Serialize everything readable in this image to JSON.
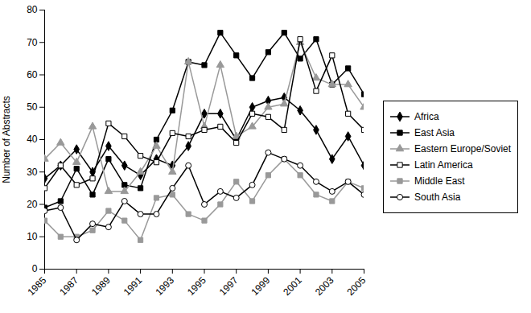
{
  "chart_data": {
    "type": "line",
    "y_label": "Number of Abstracts",
    "x": [
      1985,
      1986,
      1987,
      1988,
      1989,
      1990,
      1991,
      1992,
      1993,
      1994,
      1995,
      1996,
      1997,
      1998,
      1999,
      2000,
      2001,
      2002,
      2003,
      2004,
      2005
    ],
    "xlim": [
      1985,
      2005
    ],
    "xticks": [
      1985,
      1987,
      1989,
      1991,
      1993,
      1995,
      1997,
      1999,
      2001,
      2003,
      2005
    ],
    "ylim": [
      0,
      80
    ],
    "yticks": [
      0,
      10,
      20,
      30,
      40,
      50,
      60,
      70,
      80
    ],
    "grid": false,
    "legend": "right",
    "series": [
      {
        "name": "Africa",
        "color": "#000000",
        "marker": "diamond",
        "values": [
          28,
          32,
          37,
          30,
          38,
          32,
          29,
          34,
          32,
          38,
          48,
          48,
          40,
          50,
          52,
          53,
          49,
          43,
          34,
          41,
          32
        ]
      },
      {
        "name": "East Asia",
        "color": "#000000",
        "marker": "square",
        "values": [
          19,
          21,
          31,
          23,
          34,
          26,
          25,
          40,
          49,
          64,
          63,
          73,
          66,
          59,
          67,
          73,
          65,
          71,
          57,
          62,
          54
        ]
      },
      {
        "name": "Eastern Europe/Soviet",
        "color": "#999999",
        "marker": "triangle",
        "values": [
          34,
          39,
          33,
          44,
          24,
          24,
          30,
          38,
          30,
          64,
          44,
          63,
          41,
          44,
          50,
          51,
          70,
          59,
          57,
          57,
          50
        ]
      },
      {
        "name": "Latin America",
        "color": "#000000",
        "marker": "open-square",
        "values": [
          25,
          32,
          26,
          28,
          45,
          41,
          35,
          33,
          42,
          41,
          43,
          44,
          39,
          48,
          47,
          43,
          71,
          55,
          66,
          48,
          43
        ]
      },
      {
        "name": "Middle East",
        "color": "#999999",
        "marker": "square",
        "values": [
          15,
          10,
          10,
          12,
          18,
          15,
          9,
          22,
          23,
          17,
          15,
          20,
          27,
          21,
          29,
          34,
          29,
          23,
          21,
          27,
          25
        ]
      },
      {
        "name": "South Asia",
        "color": "#000000",
        "marker": "open-circle",
        "values": [
          18,
          19,
          9,
          14,
          13,
          21,
          17,
          17,
          25,
          32,
          20,
          24,
          22,
          26,
          36,
          34,
          32,
          27,
          24,
          27,
          23
        ]
      }
    ]
  }
}
